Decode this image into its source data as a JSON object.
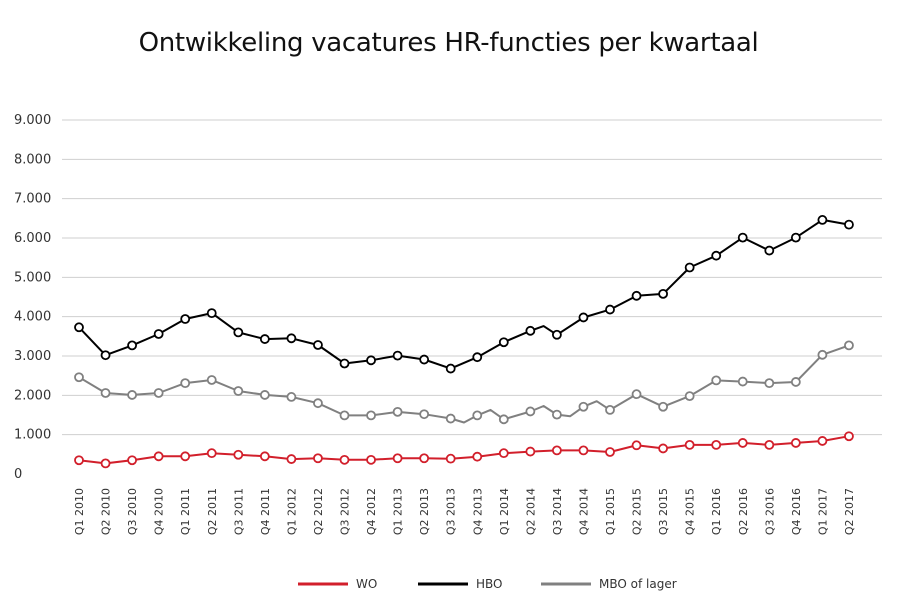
{
  "chart_data": {
    "type": "line",
    "title": "Ontwikkeling vacatures HR-functies per kwartaal",
    "xlabel": "",
    "ylabel": "",
    "ylim": [
      0,
      9000
    ],
    "yticks": [
      0,
      1000,
      2000,
      3000,
      4000,
      5000,
      6000,
      7000,
      8000,
      9000
    ],
    "ytick_labels": [
      "0",
      "1.000",
      "2.000",
      "3.000",
      "4.000",
      "5.000",
      "6.000",
      "7.000",
      "8.000",
      "9.000"
    ],
    "grid": true,
    "legend_position": "bottom",
    "categories": [
      "Q1 2010",
      "Q2 2010",
      "Q3 2010",
      "Q4 2010",
      "Q1 2011",
      "Q2 2011",
      "Q3 2011",
      "Q4 2011",
      "Q1 2012",
      "Q2 2012",
      "Q3 2012",
      "Q4 2012",
      "Q1 2013",
      "Q2 2013",
      "Q3 2013",
      "Q4 2013",
      "Q1 2014",
      "Q2 2014",
      "Q3 2014",
      "Q4 2014",
      "Q1 2015",
      "Q2 2015",
      "Q3 2015",
      "Q4 2015",
      "Q1 2016",
      "Q2 2016",
      "Q3 2016",
      "Q4 2016",
      "Q1 2017",
      "Q2 2017"
    ],
    "series": [
      {
        "name": "WO",
        "color": "#d21f2b",
        "values": [
          350,
          270,
          350,
          450,
          450,
          530,
          490,
          450,
          380,
          400,
          360,
          360,
          400,
          400,
          390,
          440,
          530,
          570,
          600,
          600,
          560,
          730,
          650,
          740,
          740,
          790,
          740,
          790,
          840,
          960
        ]
      },
      {
        "name": "HBO",
        "color": "#000000",
        "values": [
          3730,
          3020,
          3270,
          3560,
          3940,
          4090,
          3600,
          3430,
          3450,
          3280,
          2810,
          2890,
          3010,
          2910,
          2680,
          2970,
          3350,
          3640,
          3540,
          3980,
          4180,
          4530,
          4580,
          5250,
          5550,
          6010,
          5680,
          6010,
          6460,
          6340
        ]
      },
      {
        "name": "MBO of lager",
        "color": "#808080",
        "values": [
          2460,
          2060,
          2010,
          2060,
          2310,
          2390,
          2110,
          2010,
          1960,
          1800,
          1490,
          1490,
          1580,
          1520,
          1410,
          1490,
          1390,
          1590,
          1510,
          1710,
          1630,
          2030,
          1710,
          1980,
          2380,
          2350,
          2310,
          2340,
          3030,
          3270
        ]
      }
    ],
    "extra_unmarked_points": [
      {
        "series": "MBO of lager",
        "x_after": "Q3 2013",
        "value": 1310
      },
      {
        "series": "MBO of lager",
        "x_after": "Q4 2013",
        "value": 1630
      },
      {
        "series": "MBO of lager",
        "x_after": "Q2 2014",
        "value": 1730
      },
      {
        "series": "MBO of lager",
        "x_after": "Q3 2014",
        "value": 1470
      },
      {
        "series": "MBO of lager",
        "x_after": "Q4 2014",
        "value": 1850
      },
      {
        "series": "HBO",
        "x_after": "Q2 2014",
        "value": 3760
      }
    ]
  }
}
